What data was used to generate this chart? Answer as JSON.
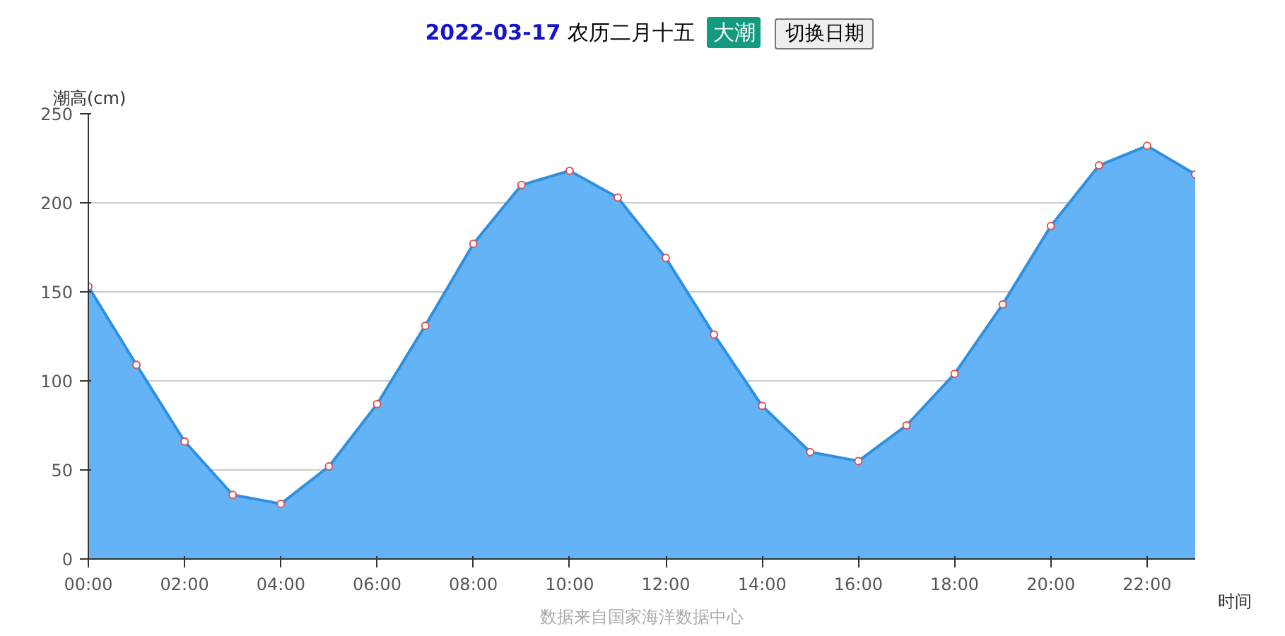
{
  "chart_data": {
    "type": "area",
    "title": "2022-03-17",
    "subtitle": "农历二月十五",
    "annotations": [
      "大潮",
      "切换日期",
      "数据来自国家海洋数据中心"
    ],
    "xlabel": "时间",
    "ylabel": "潮高(cm)",
    "x": [
      0,
      1,
      2,
      3,
      4,
      5,
      6,
      7,
      8,
      9,
      10,
      11,
      12,
      13,
      14,
      15,
      16,
      17,
      18,
      19,
      20,
      21,
      22,
      23
    ],
    "series": [
      {
        "color": "#2f90e0",
        "values": [
          153,
          109,
          66,
          36,
          31,
          52,
          87,
          131,
          177,
          210,
          218,
          203,
          169,
          126,
          86,
          60,
          55,
          75,
          104,
          143,
          187,
          221,
          232,
          216
        ]
      }
    ],
    "xlim": [
      0,
      23
    ],
    "xticks": [
      {
        "value": 0,
        "label": "00:00"
      },
      {
        "value": 2,
        "label": "02:00"
      },
      {
        "value": 4,
        "label": "04:00"
      },
      {
        "value": 6,
        "label": "06:00"
      },
      {
        "value": 8,
        "label": "08:00"
      },
      {
        "value": 10,
        "label": "10:00"
      },
      {
        "value": 12,
        "label": "12:00"
      },
      {
        "value": 14,
        "label": "14:00"
      },
      {
        "value": 16,
        "label": "16:00"
      },
      {
        "value": 18,
        "label": "18:00"
      },
      {
        "value": 20,
        "label": "20:00"
      },
      {
        "value": 22,
        "label": "22:00"
      }
    ],
    "ylim": [
      0,
      250
    ],
    "yticks": [
      0,
      50,
      100,
      150,
      200,
      250
    ],
    "grid": "y",
    "marker": "circle",
    "line_style": "solid"
  }
}
